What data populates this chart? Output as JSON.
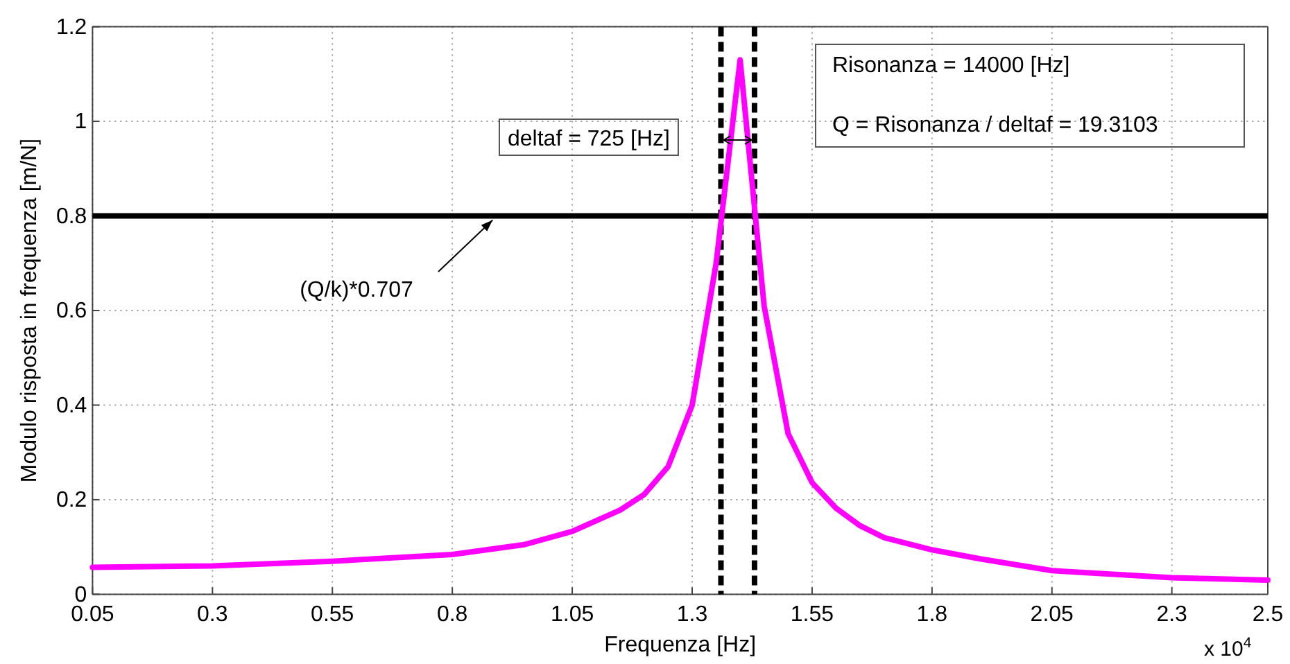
{
  "chart_data": {
    "type": "line",
    "xlabel": "Frequenza [Hz]",
    "ylabel": "Modulo risposta in frequenza [m/N]",
    "xlim": [
      0.05,
      2.5
    ],
    "xticks": [
      0.05,
      0.3,
      0.55,
      0.8,
      1.05,
      1.3,
      1.55,
      1.8,
      2.05,
      2.3,
      2.5
    ],
    "ylim": [
      0,
      1.2
    ],
    "yticks": [
      0,
      0.2,
      0.4,
      0.6,
      0.8,
      1,
      1.2
    ],
    "grid": true,
    "marker": "none",
    "line_style": "solid",
    "series": [
      {
        "color": "#ff00ff",
        "x": [
          0.05,
          0.3,
          0.55,
          0.8,
          0.95,
          1.05,
          1.15,
          1.2,
          1.25,
          1.3,
          1.35,
          1.4,
          1.45,
          1.5,
          1.55,
          1.6,
          1.65,
          1.7,
          1.8,
          1.9,
          2.05,
          2.3,
          2.5
        ],
        "values": [
          0.057,
          0.06,
          0.07,
          0.084,
          0.105,
          0.133,
          0.178,
          0.211,
          0.27,
          0.4,
          0.7,
          1.13,
          0.61,
          0.34,
          0.236,
          0.182,
          0.145,
          0.12,
          0.094,
          0.075,
          0.05,
          0.035,
          0.03
        ]
      }
    ],
    "ref_lines": [
      {
        "axis": "y",
        "value": 0.8,
        "color": "#000000",
        "line_style": "solid"
      },
      {
        "axis": "x",
        "value": 1.36,
        "color": "#000000",
        "line_style": "dashed"
      },
      {
        "axis": "x",
        "value": 1.43,
        "color": "#000000",
        "line_style": "dashed"
      }
    ],
    "annotations": [
      {
        "text": "(Q/k)*0.707",
        "x": 0.884,
        "y": 0.8
      },
      "deltaf = 725 [Hz]",
      "Risonanza = 14000 [Hz]",
      "Q = Risonanza / deltaf = 19.3103",
      "x 10$^{4}$"
    ]
  }
}
